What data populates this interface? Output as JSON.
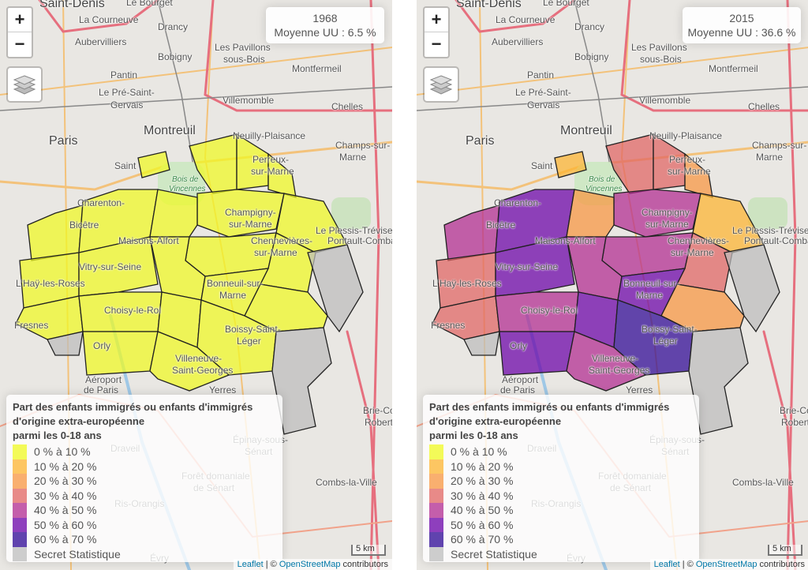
{
  "colors": {
    "classes": [
      "#f0f921",
      "#fdb42f",
      "#f89540",
      "#e16462",
      "#b12a90",
      "#6a00a8",
      "#2c0594"
    ],
    "secret": "#bdbdbd",
    "border": "#222222"
  },
  "map_labels": [
    "La Courneuve",
    "Drancy",
    "Aubervilliers",
    "Les Pavillons",
    "sous-Bois",
    "Bobigny",
    "Montfermeil",
    "Pantin",
    "Le Pré-Saint-",
    "Gervais",
    "Villemomble",
    "Chelles",
    "Montreuil",
    "Paris",
    "Neuilly-Plaisance",
    "Champs-sur-",
    "Marne",
    "Saint",
    "Bois de",
    "Vincennes",
    "Champigny-",
    "sur-Marne",
    "Le Plessis-Trévise",
    "Pontault-Combault",
    "Maisons-Alfort",
    "Chennevières-",
    "sur-Marne",
    "Vitry-sur-Seine",
    "L'Haÿ-les-Roses",
    "Bonneuil-sur-",
    "Marne",
    "Choisy-le-Roi",
    "Boissy-Saint-",
    "Léger",
    "Fresnes",
    "Orly",
    "Villeneuve-",
    "Saint-Georges",
    "Aéroport",
    "de Paris",
    "Yerres",
    "Brie-Comte",
    "Robert",
    "Draveil",
    "Épinay-sous-",
    "Sénart",
    "Forêt domaniale",
    "de Sénart",
    "Combs-la-Ville",
    "Ris-Orangis",
    "Évry",
    "Saint-Denis",
    "Le Bourget",
    "Charenton-",
    "Bicêtre",
    "Perreux-",
    "sur-Marne"
  ],
  "controls": {
    "zoom_in": "+",
    "zoom_out": "−",
    "layers_icon": "layers-icon"
  },
  "legend": {
    "title_lines": [
      "Part des enfants immigrés ou enfants d'immigrés",
      "d'origine extra-européenne",
      "parmi les 0-18 ans"
    ],
    "items": [
      "0 % à 10 %",
      "10 % à 20 %",
      "20 % à 30 %",
      "30 % à 40 %",
      "40 % à 50 %",
      "50 % à 60 %",
      "60 % à 70 %"
    ],
    "secret_label": "Secret Statistique"
  },
  "scale": "5 km",
  "attribution": {
    "leaflet": "Leaflet",
    "sep": " | © ",
    "osm": "OpenStreetMap",
    "suffix": " contributors"
  },
  "panels": [
    {
      "year": "1968",
      "mean": "Moyenne UU : 6.5 %",
      "cell_classes": [
        0,
        0,
        0,
        0,
        0,
        0,
        0,
        0,
        0,
        0,
        0,
        0,
        0,
        0,
        0,
        0,
        0,
        0,
        0,
        0,
        0,
        0,
        "s",
        "s",
        "s"
      ]
    },
    {
      "year": "2015",
      "mean": "Moyenne UU : 36.6 %",
      "cell_classes": [
        1,
        3,
        3,
        2,
        4,
        1,
        4,
        5,
        2,
        4,
        3,
        3,
        5,
        4,
        5,
        2,
        3,
        4,
        5,
        6,
        5,
        4,
        "s",
        "s",
        "s"
      ]
    }
  ]
}
